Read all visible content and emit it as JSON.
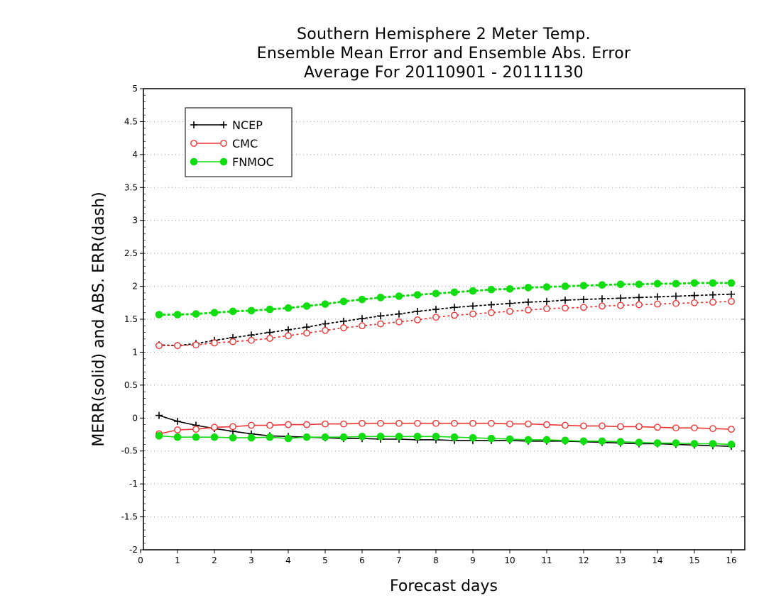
{
  "chart_data": {
    "type": "line",
    "title": [
      "Southern Hemisphere 2 Meter Temp.",
      "Ensemble Mean Error and Ensemble Abs. Error",
      "Average For 20110901 - 20111130"
    ],
    "xlabel": "Forecast days",
    "ylabel": "MERR(solid) and ABS. ERR(dash)",
    "xlim": [
      0,
      16.25
    ],
    "ylim": [
      -2,
      5
    ],
    "xticks": [
      0,
      1,
      2,
      3,
      4,
      5,
      6,
      7,
      8,
      9,
      10,
      11,
      12,
      13,
      14,
      15,
      16
    ],
    "xtick_labels": [
      "0",
      "1",
      "2",
      "3",
      "4",
      "5",
      "6",
      "7",
      "8",
      "9",
      "10",
      "11",
      "12",
      "13",
      "14",
      "15",
      "16"
    ],
    "yticks": [
      -2,
      -1.5,
      -1,
      -0.5,
      0,
      0.5,
      1,
      1.5,
      2,
      2.5,
      3,
      3.5,
      4,
      4.5,
      5
    ],
    "ytick_labels": [
      "-2",
      "-1.5",
      "-1",
      "-0.5",
      "0",
      "0.5",
      "1",
      "1.5",
      "2",
      "2.5",
      "3",
      "3.5",
      "4",
      "4.5",
      "5"
    ],
    "grid": true,
    "legend_position": "top-left",
    "x": [
      0.5,
      1,
      1.5,
      2,
      2.5,
      3,
      3.5,
      4,
      4.5,
      5,
      5.5,
      6,
      6.5,
      7,
      7.5,
      8,
      8.5,
      9,
      9.5,
      10,
      10.5,
      11,
      11.5,
      12,
      12.5,
      13,
      13.5,
      14,
      14.5,
      15,
      15.5,
      16
    ],
    "series": [
      {
        "name": "NCEP",
        "kind": "merr",
        "color": "#000000",
        "marker": "plus",
        "values": [
          0.04,
          -0.05,
          -0.11,
          -0.16,
          -0.2,
          -0.24,
          -0.27,
          -0.28,
          -0.29,
          -0.3,
          -0.31,
          -0.31,
          -0.32,
          -0.32,
          -0.33,
          -0.33,
          -0.34,
          -0.34,
          -0.34,
          -0.34,
          -0.35,
          -0.35,
          -0.35,
          -0.36,
          -0.37,
          -0.38,
          -0.39,
          -0.39,
          -0.4,
          -0.41,
          -0.42,
          -0.43
        ]
      },
      {
        "name": "CMC",
        "kind": "merr",
        "color": "#ee3333",
        "marker": "circle-open",
        "values": [
          -0.24,
          -0.18,
          -0.17,
          -0.14,
          -0.13,
          -0.11,
          -0.11,
          -0.1,
          -0.1,
          -0.09,
          -0.09,
          -0.08,
          -0.08,
          -0.08,
          -0.08,
          -0.08,
          -0.08,
          -0.08,
          -0.08,
          -0.09,
          -0.09,
          -0.1,
          -0.11,
          -0.12,
          -0.12,
          -0.13,
          -0.13,
          -0.14,
          -0.15,
          -0.15,
          -0.16,
          -0.17
        ]
      },
      {
        "name": "FNMOC",
        "kind": "merr",
        "color": "#11dd11",
        "marker": "circle-filled",
        "values": [
          -0.27,
          -0.29,
          -0.29,
          -0.29,
          -0.3,
          -0.3,
          -0.29,
          -0.31,
          -0.29,
          -0.29,
          -0.29,
          -0.28,
          -0.28,
          -0.28,
          -0.28,
          -0.28,
          -0.29,
          -0.3,
          -0.31,
          -0.32,
          -0.33,
          -0.33,
          -0.34,
          -0.35,
          -0.35,
          -0.36,
          -0.37,
          -0.38,
          -0.38,
          -0.39,
          -0.39,
          -0.4
        ]
      },
      {
        "name": "NCEP",
        "kind": "abs",
        "color": "#000000",
        "marker": "plus",
        "values": [
          1.11,
          1.1,
          1.13,
          1.18,
          1.22,
          1.26,
          1.3,
          1.34,
          1.38,
          1.43,
          1.47,
          1.51,
          1.55,
          1.58,
          1.62,
          1.65,
          1.68,
          1.7,
          1.72,
          1.74,
          1.76,
          1.77,
          1.79,
          1.8,
          1.81,
          1.82,
          1.83,
          1.84,
          1.85,
          1.86,
          1.87,
          1.88
        ]
      },
      {
        "name": "CMC",
        "kind": "abs",
        "color": "#ee3333",
        "marker": "circle-open",
        "values": [
          1.1,
          1.1,
          1.11,
          1.14,
          1.16,
          1.18,
          1.21,
          1.25,
          1.29,
          1.33,
          1.37,
          1.4,
          1.43,
          1.46,
          1.49,
          1.53,
          1.56,
          1.58,
          1.6,
          1.62,
          1.64,
          1.66,
          1.67,
          1.68,
          1.7,
          1.71,
          1.72,
          1.73,
          1.74,
          1.75,
          1.76,
          1.77
        ]
      },
      {
        "name": "FNMOC",
        "kind": "abs",
        "color": "#11dd11",
        "marker": "circle-filled",
        "values": [
          1.57,
          1.57,
          1.58,
          1.6,
          1.62,
          1.63,
          1.65,
          1.67,
          1.7,
          1.73,
          1.77,
          1.8,
          1.83,
          1.85,
          1.87,
          1.89,
          1.91,
          1.93,
          1.95,
          1.96,
          1.98,
          1.99,
          2.0,
          2.01,
          2.02,
          2.03,
          2.03,
          2.04,
          2.04,
          2.05,
          2.05,
          2.05
        ]
      }
    ],
    "legend": [
      {
        "name": "NCEP",
        "color": "#000000",
        "marker": "plus"
      },
      {
        "name": "CMC",
        "color": "#ee3333",
        "marker": "circle-open"
      },
      {
        "name": "FNMOC",
        "color": "#11dd11",
        "marker": "circle-filled"
      }
    ]
  }
}
